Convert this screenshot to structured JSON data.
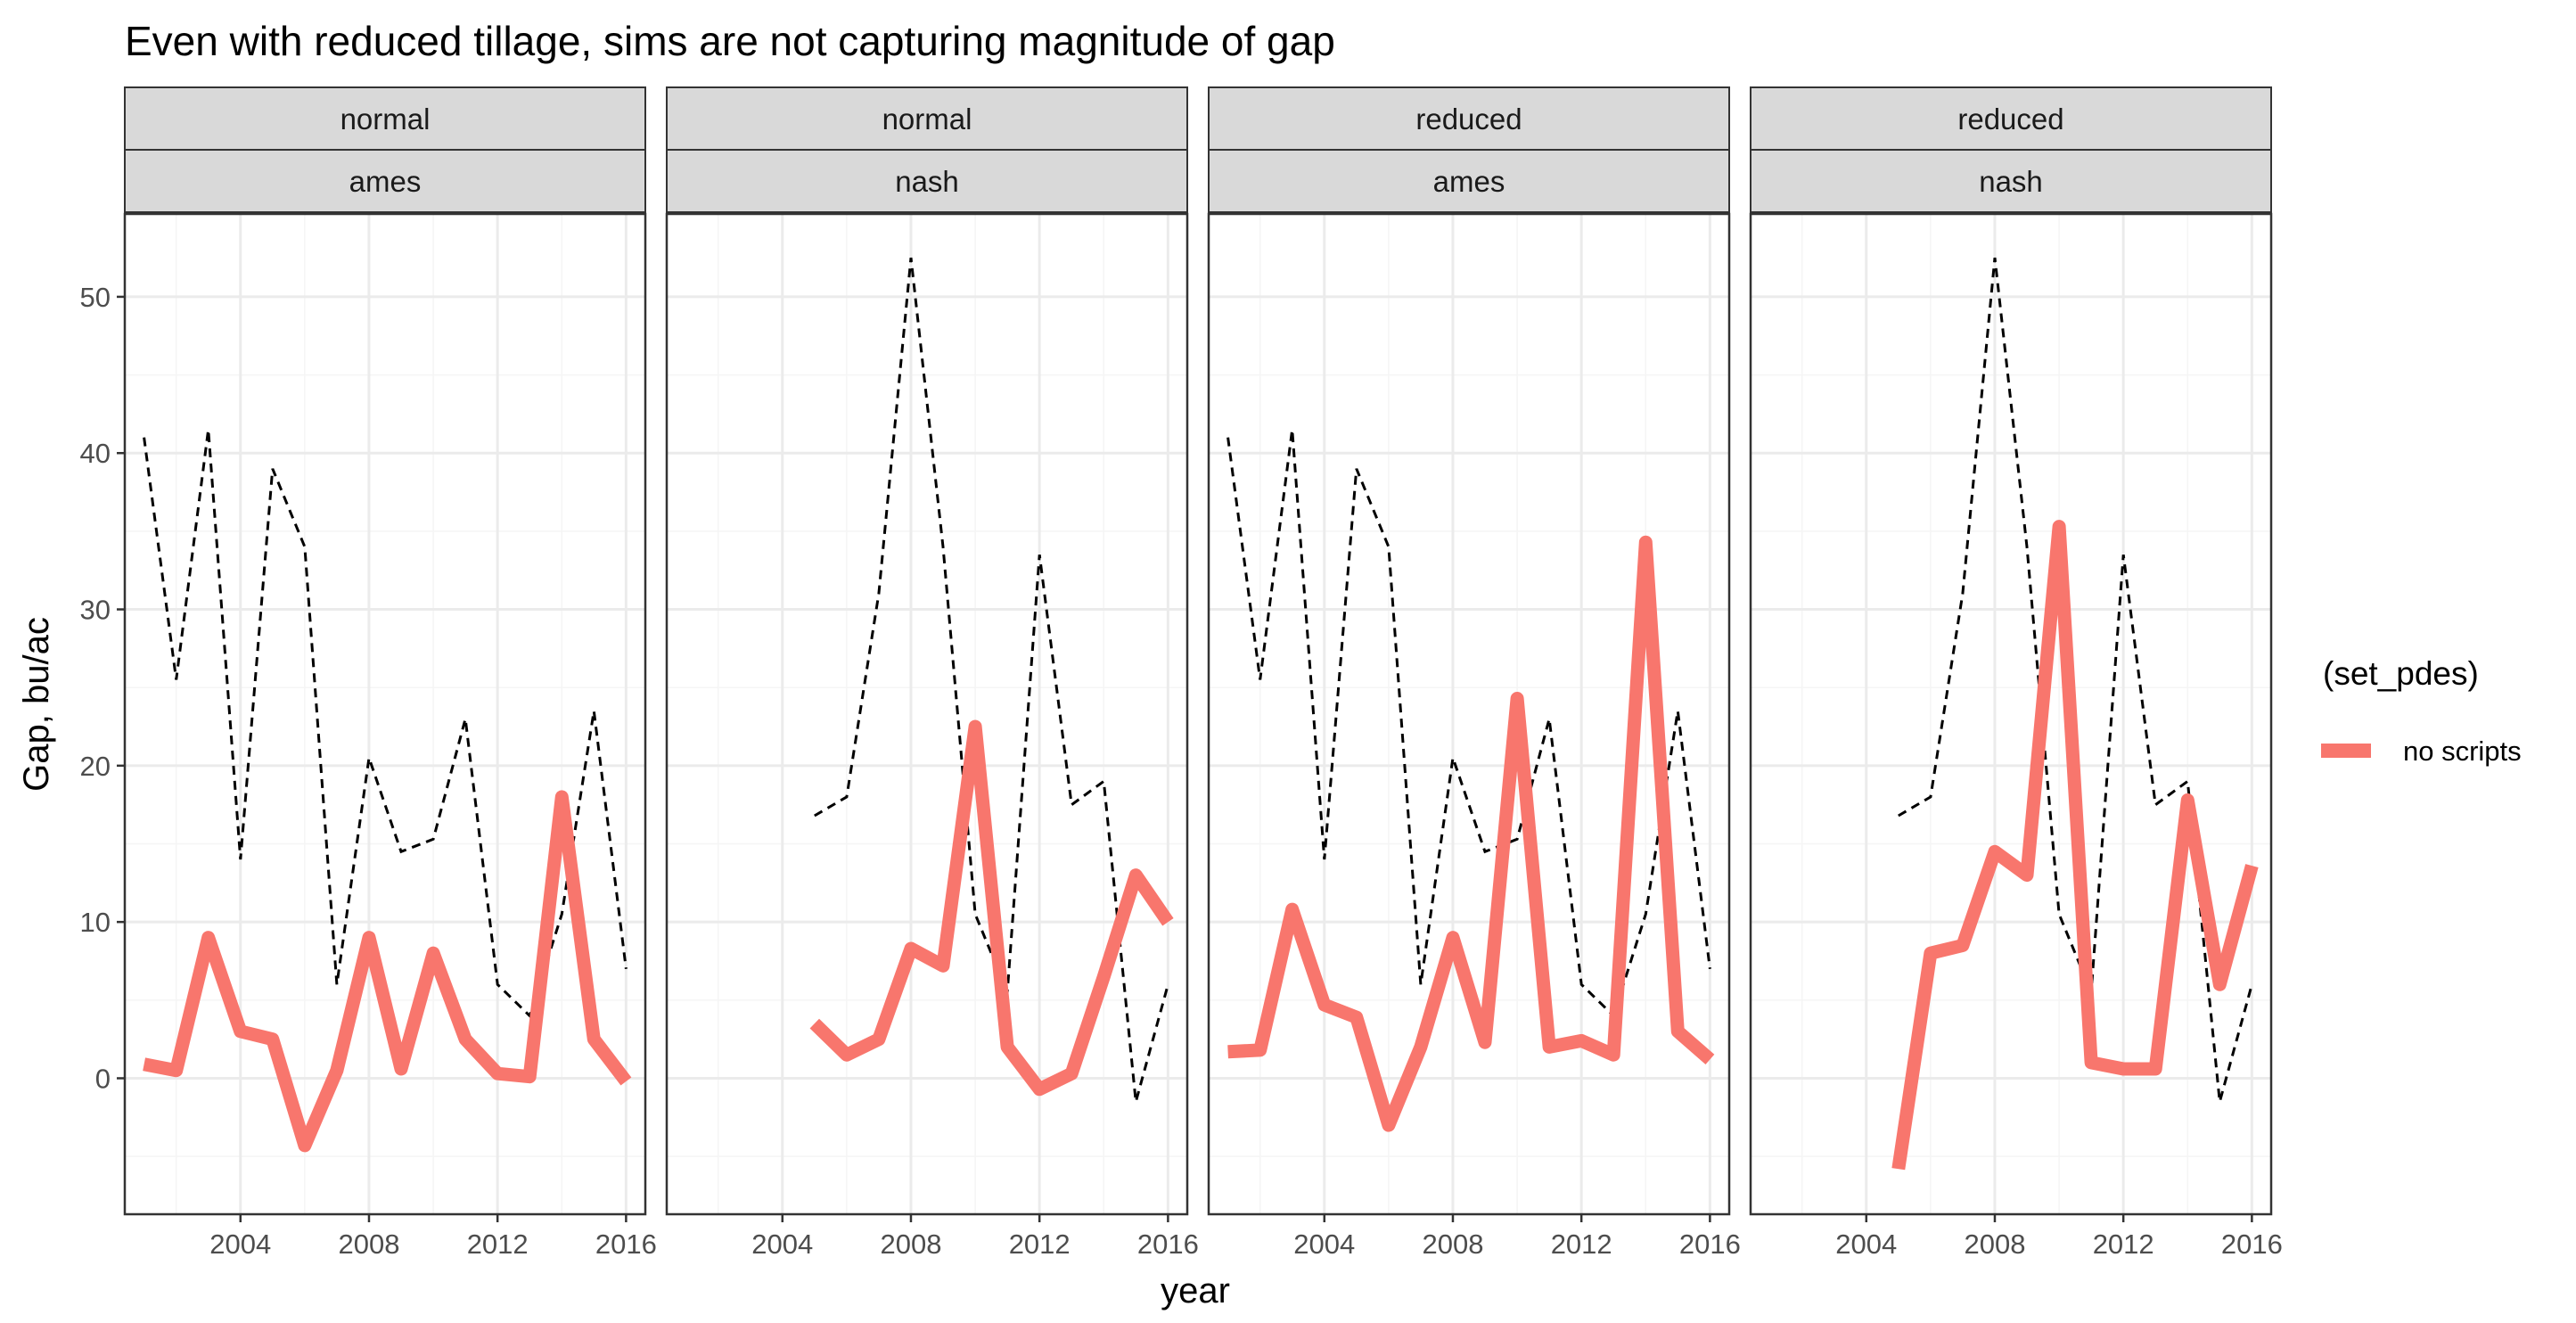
{
  "chart_data": {
    "type": "line",
    "title": "Even with reduced tillage, sims are not capturing magnitude of gap",
    "xlabel": "year",
    "ylabel": "Gap, bu/ac",
    "xlim": [
      2000.4,
      2016.6
    ],
    "ylim": [
      -8.7,
      55.3
    ],
    "x_ticks": [
      2004,
      2008,
      2012,
      2016
    ],
    "y_ticks": [
      0,
      10,
      20,
      30,
      40,
      50
    ],
    "grid": true,
    "legend": {
      "title": "(set_pdes)",
      "position": "right",
      "entries": [
        {
          "label": "no scripts",
          "color": "#F8766D"
        }
      ]
    },
    "facets": [
      {
        "strip_top": "normal",
        "strip_bottom": "ames",
        "observed": {
          "x": [
            2001,
            2002,
            2003,
            2004,
            2005,
            2006,
            2007,
            2008,
            2009,
            2010,
            2011,
            2012,
            2013,
            2014,
            2015,
            2016
          ],
          "y": [
            41,
            25.5,
            41.5,
            14,
            39,
            34,
            6,
            20.5,
            14.5,
            15.3,
            23,
            6,
            4,
            10.5,
            23.5,
            7
          ]
        },
        "series": [
          {
            "name": "no scripts",
            "x": [
              2001,
              2002,
              2003,
              2004,
              2005,
              2006,
              2007,
              2008,
              2009,
              2010,
              2011,
              2012,
              2013,
              2014,
              2015,
              2016
            ],
            "y": [
              0.9,
              0.5,
              9,
              3,
              2.5,
              -4.3,
              0.5,
              9,
              0.6,
              8,
              2.5,
              0.3,
              0.1,
              18,
              2.5,
              -0.2
            ]
          }
        ]
      },
      {
        "strip_top": "normal",
        "strip_bottom": "nash",
        "observed": {
          "x": [
            2005,
            2006,
            2007,
            2008,
            2009,
            2010,
            2011,
            2012,
            2013,
            2014,
            2015,
            2016
          ],
          "y": [
            16.8,
            18,
            31,
            52.5,
            34,
            10.5,
            5.5,
            33.5,
            17.5,
            19,
            -1.5,
            6
          ]
        },
        "series": [
          {
            "name": "no scripts",
            "x": [
              2005,
              2006,
              2007,
              2008,
              2009,
              2010,
              2011,
              2012,
              2013,
              2014,
              2015,
              2016
            ],
            "y": [
              3.5,
              1.5,
              2.5,
              8.3,
              7.2,
              22.5,
              2,
              -0.7,
              0.3,
              6.5,
              13,
              10
            ]
          }
        ]
      },
      {
        "strip_top": "reduced",
        "strip_bottom": "ames",
        "observed": {
          "x": [
            2001,
            2002,
            2003,
            2004,
            2005,
            2006,
            2007,
            2008,
            2009,
            2010,
            2011,
            2012,
            2013,
            2014,
            2015,
            2016
          ],
          "y": [
            41,
            25.5,
            41.5,
            14,
            39,
            34,
            6,
            20.5,
            14.5,
            15.3,
            23,
            6,
            4,
            10.5,
            23.5,
            7
          ]
        },
        "series": [
          {
            "name": "no scripts",
            "x": [
              2001,
              2002,
              2003,
              2004,
              2005,
              2006,
              2007,
              2008,
              2009,
              2010,
              2011,
              2012,
              2013,
              2014,
              2015,
              2016
            ],
            "y": [
              1.7,
              1.8,
              10.8,
              4.7,
              3.9,
              -3,
              2,
              9,
              2.3,
              24.3,
              2,
              2.4,
              1.5,
              34.3,
              3,
              1.2
            ]
          }
        ]
      },
      {
        "strip_top": "reduced",
        "strip_bottom": "nash",
        "observed": {
          "x": [
            2005,
            2006,
            2007,
            2008,
            2009,
            2010,
            2011,
            2012,
            2013,
            2014,
            2015,
            2016
          ],
          "y": [
            16.8,
            18,
            31,
            52.5,
            34,
            10.5,
            5.5,
            33.5,
            17.5,
            19,
            -1.5,
            6
          ]
        },
        "series": [
          {
            "name": "no scripts",
            "x": [
              2005,
              2006,
              2007,
              2008,
              2009,
              2010,
              2011,
              2012,
              2013,
              2014,
              2015,
              2016
            ],
            "y": [
              -5.8,
              8,
              8.5,
              14.5,
              13,
              35.3,
              1,
              0.6,
              0.6,
              17.8,
              6,
              13.6
            ]
          }
        ]
      }
    ]
  },
  "colors": {
    "series": "#F8766D",
    "observed": "#000000",
    "strip_fill": "#D9D9D9",
    "panel_border": "#333333",
    "grid_major": "#EBEBEB",
    "grid_minor": "#F5F5F5"
  }
}
